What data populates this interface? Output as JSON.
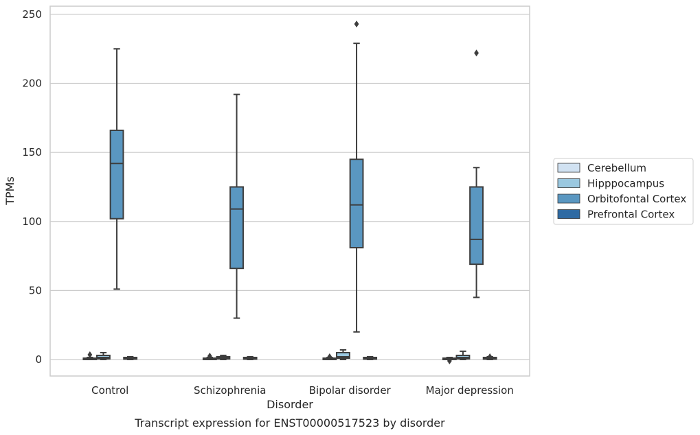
{
  "caption": "Transcript expression for ENST00000517523 by disorder",
  "chart_data": {
    "type": "box",
    "xlabel": "Disorder",
    "ylabel": "TPMs",
    "ylim": [
      -12,
      256
    ],
    "yticks": [
      0,
      50,
      100,
      150,
      200,
      250
    ],
    "grid": "horizontal",
    "legend_position": "right",
    "categories": [
      "Control",
      "Schizophrenia",
      "Bipolar disorder",
      "Major depression"
    ],
    "series": [
      {
        "name": "Cerebellum",
        "color": "#d1e2f2",
        "boxes": [
          {
            "whisker_low": 0,
            "q1": 0.2,
            "median": 0.5,
            "q3": 1,
            "whisker_high": 1.5,
            "outliers": [
              3.5
            ]
          },
          {
            "whisker_low": 0,
            "q1": 0.2,
            "median": 0.5,
            "q3": 1,
            "whisker_high": 1.5,
            "outliers": [
              2.5
            ]
          },
          {
            "whisker_low": 0,
            "q1": 0.2,
            "median": 0.5,
            "q3": 1,
            "whisker_high": 1.5,
            "outliers": [
              2
            ]
          },
          {
            "whisker_low": 0,
            "q1": 0.2,
            "median": 0.5,
            "q3": 1,
            "whisker_high": 1.5,
            "outliers": [
              -1
            ]
          }
        ]
      },
      {
        "name": "Hipppocampus",
        "color": "#9ac8e0",
        "boxes": [
          {
            "whisker_low": 0,
            "q1": 0.5,
            "median": 1.5,
            "q3": 3,
            "whisker_high": 5,
            "outliers": []
          },
          {
            "whisker_low": 0,
            "q1": 0.5,
            "median": 1.5,
            "q3": 2,
            "whisker_high": 3,
            "outliers": []
          },
          {
            "whisker_low": 0,
            "q1": 1,
            "median": 2,
            "q3": 5,
            "whisker_high": 7,
            "outliers": []
          },
          {
            "whisker_low": 0,
            "q1": 0.5,
            "median": 1.5,
            "q3": 3,
            "whisker_high": 6,
            "outliers": []
          }
        ]
      },
      {
        "name": "Orbitofontal Cortex",
        "color": "#5a97c1",
        "boxes": [
          {
            "whisker_low": 51,
            "q1": 102,
            "median": 142,
            "q3": 166,
            "whisker_high": 225,
            "outliers": []
          },
          {
            "whisker_low": 30,
            "q1": 66,
            "median": 109,
            "q3": 125,
            "whisker_high": 192,
            "outliers": []
          },
          {
            "whisker_low": 20,
            "q1": 81,
            "median": 112,
            "q3": 145,
            "whisker_high": 229,
            "outliers": [
              243
            ]
          },
          {
            "whisker_low": 45,
            "q1": 69,
            "median": 87,
            "q3": 125,
            "whisker_high": 139,
            "outliers": [
              222
            ]
          }
        ]
      },
      {
        "name": "Prefrontal Cortex",
        "color": "#2e6aa3",
        "boxes": [
          {
            "whisker_low": 0,
            "q1": 0.3,
            "median": 1,
            "q3": 1.5,
            "whisker_high": 2,
            "outliers": []
          },
          {
            "whisker_low": 0,
            "q1": 0.3,
            "median": 1,
            "q3": 1.5,
            "whisker_high": 2,
            "outliers": []
          },
          {
            "whisker_low": 0,
            "q1": 0.3,
            "median": 1,
            "q3": 1.5,
            "whisker_high": 2,
            "outliers": []
          },
          {
            "whisker_low": 0,
            "q1": 0.3,
            "median": 1,
            "q3": 1.5,
            "whisker_high": 2,
            "outliers": [
              2
            ]
          }
        ]
      }
    ]
  }
}
